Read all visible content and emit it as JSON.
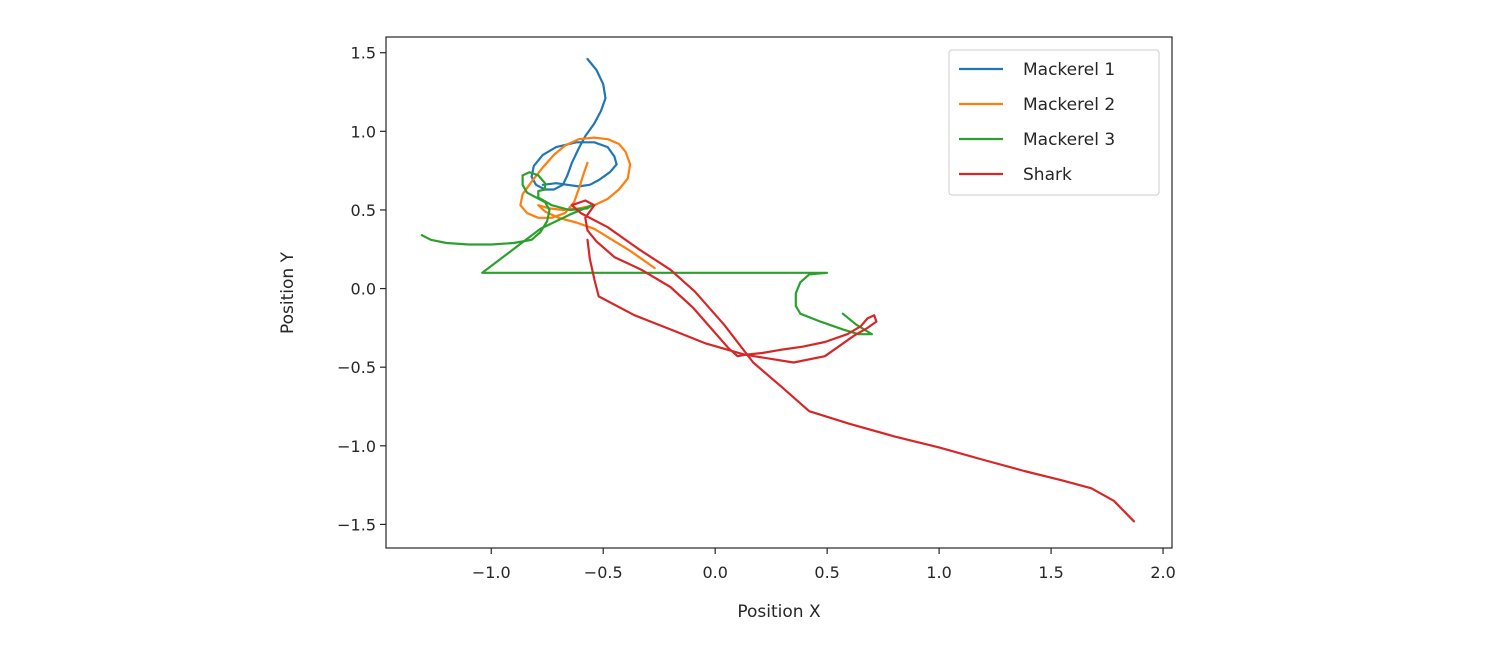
{
  "chart_data": {
    "type": "line",
    "title": "",
    "xlabel": "Position X",
    "ylabel": "Position Y",
    "xlim": [
      -1.47,
      2.04
    ],
    "ylim": [
      -1.65,
      1.6
    ],
    "xticks": [
      -1.0,
      -0.5,
      0.0,
      0.5,
      1.0,
      1.5,
      2.0
    ],
    "xtick_labels": [
      "−1.0",
      "−0.5",
      "0.0",
      "0.5",
      "1.0",
      "1.5",
      "2.0"
    ],
    "yticks": [
      1.5,
      1.0,
      0.5,
      0.0,
      -0.5,
      -1.0,
      -1.5
    ],
    "ytick_labels": [
      "1.5",
      "1.0",
      "0.5",
      "0.0",
      "−0.5",
      "−1.0",
      "−1.5"
    ],
    "grid": false,
    "legend_position": "upper-right",
    "series": [
      {
        "name": "Mackerel 1",
        "color": "#1f77b4",
        "points": [
          [
            -0.57,
            1.46
          ],
          [
            -0.53,
            1.39
          ],
          [
            -0.5,
            1.3
          ],
          [
            -0.49,
            1.21
          ],
          [
            -0.51,
            1.13
          ],
          [
            -0.54,
            1.05
          ],
          [
            -0.58,
            0.97
          ],
          [
            -0.61,
            0.89
          ],
          [
            -0.64,
            0.8
          ],
          [
            -0.66,
            0.72
          ],
          [
            -0.68,
            0.66
          ],
          [
            -0.72,
            0.63
          ],
          [
            -0.76,
            0.63
          ],
          [
            -0.8,
            0.66
          ],
          [
            -0.82,
            0.71
          ],
          [
            -0.81,
            0.78
          ],
          [
            -0.77,
            0.85
          ],
          [
            -0.71,
            0.9
          ],
          [
            -0.62,
            0.93
          ],
          [
            -0.54,
            0.93
          ],
          [
            -0.48,
            0.9
          ],
          [
            -0.45,
            0.84
          ],
          [
            -0.44,
            0.79
          ],
          [
            -0.47,
            0.74
          ],
          [
            -0.52,
            0.69
          ],
          [
            -0.56,
            0.66
          ],
          [
            -0.61,
            0.65
          ],
          [
            -0.66,
            0.66
          ],
          [
            -0.71,
            0.67
          ],
          [
            -0.77,
            0.66
          ]
        ]
      },
      {
        "name": "Mackerel 2",
        "color": "#ff7f0e",
        "points": [
          [
            -0.57,
            0.8
          ],
          [
            -0.59,
            0.72
          ],
          [
            -0.61,
            0.63
          ],
          [
            -0.63,
            0.55
          ],
          [
            -0.67,
            0.48
          ],
          [
            -0.73,
            0.45
          ],
          [
            -0.79,
            0.45
          ],
          [
            -0.84,
            0.48
          ],
          [
            -0.87,
            0.53
          ],
          [
            -0.86,
            0.6
          ],
          [
            -0.82,
            0.68
          ],
          [
            -0.77,
            0.77
          ],
          [
            -0.72,
            0.85
          ],
          [
            -0.67,
            0.91
          ],
          [
            -0.61,
            0.95
          ],
          [
            -0.54,
            0.96
          ],
          [
            -0.48,
            0.95
          ],
          [
            -0.43,
            0.92
          ],
          [
            -0.4,
            0.87
          ],
          [
            -0.38,
            0.79
          ],
          [
            -0.39,
            0.7
          ],
          [
            -0.43,
            0.63
          ],
          [
            -0.48,
            0.57
          ],
          [
            -0.54,
            0.53
          ],
          [
            -0.61,
            0.51
          ],
          [
            -0.68,
            0.5
          ],
          [
            -0.74,
            0.51
          ],
          [
            -0.79,
            0.53
          ],
          [
            -0.76,
            0.49
          ],
          [
            -0.7,
            0.45
          ],
          [
            -0.62,
            0.42
          ],
          [
            -0.54,
            0.38
          ],
          [
            -0.46,
            0.31
          ],
          [
            -0.38,
            0.24
          ],
          [
            -0.31,
            0.17
          ],
          [
            -0.27,
            0.13
          ]
        ]
      },
      {
        "name": "Mackerel 3",
        "color": "#2ca02c",
        "points": [
          [
            -1.31,
            0.34
          ],
          [
            -1.27,
            0.31
          ],
          [
            -1.2,
            0.29
          ],
          [
            -1.1,
            0.28
          ],
          [
            -1.0,
            0.28
          ],
          [
            -0.9,
            0.29
          ],
          [
            -0.82,
            0.31
          ],
          [
            -0.78,
            0.36
          ],
          [
            -0.75,
            0.43
          ],
          [
            -0.74,
            0.5
          ],
          [
            -0.76,
            0.55
          ],
          [
            -0.8,
            0.58
          ],
          [
            -0.84,
            0.61
          ],
          [
            -0.86,
            0.66
          ],
          [
            -0.86,
            0.72
          ],
          [
            -0.83,
            0.74
          ],
          [
            -0.79,
            0.72
          ],
          [
            -0.76,
            0.67
          ],
          [
            -0.76,
            0.63
          ],
          [
            -0.79,
            0.62
          ],
          [
            -0.79,
            0.58
          ],
          [
            -0.73,
            0.53
          ],
          [
            -0.65,
            0.5
          ],
          [
            -0.57,
            0.51
          ],
          [
            -0.55,
            0.53
          ],
          [
            -0.65,
            0.47
          ],
          [
            -0.78,
            0.38
          ],
          [
            -0.92,
            0.23
          ],
          [
            -1.04,
            0.1
          ],
          [
            0.06,
            0.1
          ],
          [
            0.5,
            0.1
          ],
          [
            0.42,
            0.09
          ],
          [
            0.38,
            0.04
          ],
          [
            0.36,
            -0.03
          ],
          [
            0.36,
            -0.11
          ],
          [
            0.38,
            -0.16
          ],
          [
            0.47,
            -0.21
          ],
          [
            0.57,
            -0.26
          ],
          [
            0.64,
            -0.29
          ],
          [
            0.7,
            -0.29
          ],
          [
            0.63,
            -0.23
          ],
          [
            0.57,
            -0.16
          ]
        ]
      },
      {
        "name": "Shark",
        "color": "#d62728",
        "points": [
          [
            -0.57,
            0.31
          ],
          [
            -0.56,
            0.19
          ],
          [
            -0.54,
            0.06
          ],
          [
            -0.52,
            -0.05
          ],
          [
            -0.36,
            -0.17
          ],
          [
            -0.2,
            -0.26
          ],
          [
            -0.04,
            -0.35
          ],
          [
            0.13,
            -0.42
          ],
          [
            0.35,
            -0.47
          ],
          [
            0.49,
            -0.43
          ],
          [
            0.62,
            -0.3
          ],
          [
            0.68,
            -0.25
          ],
          [
            0.72,
            -0.21
          ],
          [
            0.71,
            -0.17
          ],
          [
            0.68,
            -0.19
          ],
          [
            0.65,
            -0.24
          ],
          [
            0.59,
            -0.29
          ],
          [
            0.49,
            -0.34
          ],
          [
            0.39,
            -0.37
          ],
          [
            0.29,
            -0.39
          ],
          [
            0.21,
            -0.41
          ],
          [
            0.14,
            -0.42
          ],
          [
            0.1,
            -0.43
          ],
          [
            0.06,
            -0.38
          ],
          [
            -0.02,
            -0.25
          ],
          [
            -0.1,
            -0.12
          ],
          [
            -0.2,
            0.01
          ],
          [
            -0.33,
            0.12
          ],
          [
            -0.45,
            0.2
          ],
          [
            -0.53,
            0.3
          ],
          [
            -0.57,
            0.37
          ],
          [
            -0.58,
            0.45
          ],
          [
            -0.54,
            0.53
          ],
          [
            -0.58,
            0.56
          ],
          [
            -0.64,
            0.53
          ],
          [
            -0.6,
            0.48
          ],
          [
            -0.48,
            0.39
          ],
          [
            -0.34,
            0.25
          ],
          [
            -0.2,
            0.12
          ],
          [
            -0.09,
            -0.02
          ],
          [
            0.04,
            -0.23
          ],
          [
            0.17,
            -0.47
          ],
          [
            0.3,
            -0.63
          ],
          [
            0.42,
            -0.78
          ],
          [
            0.6,
            -0.86
          ],
          [
            0.8,
            -0.94
          ],
          [
            1.0,
            -1.01
          ],
          [
            1.2,
            -1.09
          ],
          [
            1.38,
            -1.16
          ],
          [
            1.55,
            -1.22
          ],
          [
            1.68,
            -1.27
          ],
          [
            1.78,
            -1.35
          ],
          [
            1.87,
            -1.48
          ]
        ]
      }
    ]
  }
}
